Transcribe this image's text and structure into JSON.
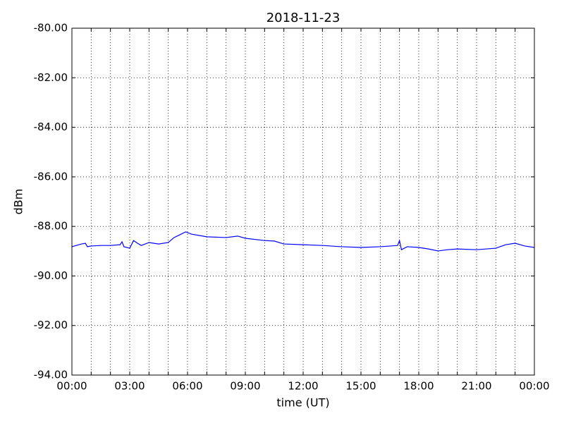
{
  "chart_data": {
    "type": "line",
    "title": "2018-11-23",
    "xlabel": "time (UT)",
    "ylabel": "dBm",
    "color": "#0000ff",
    "grid": true,
    "x": [
      0,
      0.5,
      0.7,
      0.8,
      1.0,
      1.5,
      2.0,
      2.5,
      2.6,
      2.7,
      3.0,
      3.2,
      3.4,
      3.6,
      4.0,
      4.5,
      5.0,
      5.3,
      5.6,
      5.9,
      6.2,
      7.0,
      8.0,
      8.6,
      9.0,
      10.0,
      10.5,
      11.0,
      12.0,
      13.0,
      14.0,
      15.0,
      16.0,
      16.9,
      17.0,
      17.1,
      17.4,
      18.0,
      18.5,
      19.0,
      19.5,
      20.0,
      21.0,
      22.0,
      22.5,
      23.0,
      23.5,
      24.0
    ],
    "values": [
      -88.82,
      -88.71,
      -88.68,
      -88.82,
      -88.79,
      -88.77,
      -88.77,
      -88.74,
      -88.62,
      -88.82,
      -88.88,
      -88.57,
      -88.68,
      -88.77,
      -88.65,
      -88.71,
      -88.65,
      -88.45,
      -88.34,
      -88.22,
      -88.31,
      -88.42,
      -88.45,
      -88.39,
      -88.48,
      -88.57,
      -88.59,
      -88.71,
      -88.74,
      -88.77,
      -88.82,
      -88.85,
      -88.82,
      -88.77,
      -88.57,
      -88.94,
      -88.82,
      -88.85,
      -88.91,
      -88.99,
      -88.94,
      -88.91,
      -88.94,
      -88.88,
      -88.74,
      -88.68,
      -88.79,
      -88.85
    ],
    "xlim": [
      0,
      24
    ],
    "xticks": [
      {
        "value": 0,
        "label": "00:00"
      },
      {
        "value": 3,
        "label": "03:00"
      },
      {
        "value": 6,
        "label": "06:00"
      },
      {
        "value": 9,
        "label": "09:00"
      },
      {
        "value": 12,
        "label": "12:00"
      },
      {
        "value": 15,
        "label": "15:00"
      },
      {
        "value": 18,
        "label": "18:00"
      },
      {
        "value": 21,
        "label": "21:00"
      },
      {
        "value": 24,
        "label": "00:00"
      }
    ],
    "xminor": [
      1,
      2,
      4,
      5,
      7,
      8,
      10,
      11,
      13,
      14,
      16,
      17,
      19,
      20,
      22,
      23
    ],
    "ylim": [
      -94,
      -80
    ],
    "yticks": [
      {
        "value": -94,
        "label": "-94.00"
      },
      {
        "value": -92,
        "label": "-92.00"
      },
      {
        "value": -90,
        "label": "-90.00"
      },
      {
        "value": -88,
        "label": "-88.00"
      },
      {
        "value": -86,
        "label": "-86.00"
      },
      {
        "value": -84,
        "label": "-84.00"
      },
      {
        "value": -82,
        "label": "-82.00"
      },
      {
        "value": -80,
        "label": "-80.00"
      }
    ]
  }
}
